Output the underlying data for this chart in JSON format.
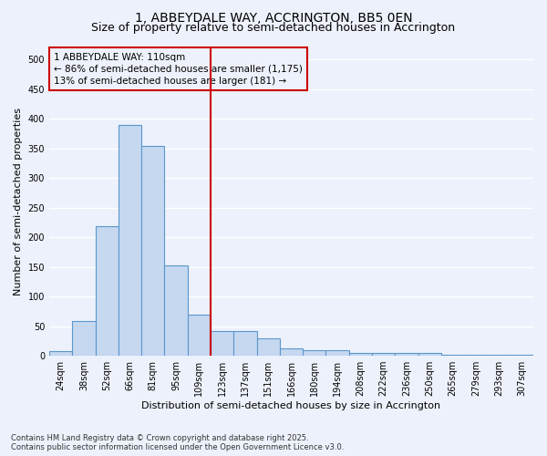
{
  "title": "1, ABBEYDALE WAY, ACCRINGTON, BB5 0EN",
  "subtitle": "Size of property relative to semi-detached houses in Accrington",
  "xlabel": "Distribution of semi-detached houses by size in Accrington",
  "ylabel": "Number of semi-detached properties",
  "footer_line1": "Contains HM Land Registry data © Crown copyright and database right 2025.",
  "footer_line2": "Contains public sector information licensed under the Open Government Licence v3.0.",
  "bin_labels": [
    "24sqm",
    "38sqm",
    "52sqm",
    "66sqm",
    "81sqm",
    "95sqm",
    "109sqm",
    "123sqm",
    "137sqm",
    "151sqm",
    "166sqm",
    "180sqm",
    "194sqm",
    "208sqm",
    "222sqm",
    "236sqm",
    "250sqm",
    "265sqm",
    "279sqm",
    "293sqm",
    "307sqm"
  ],
  "bar_values": [
    8,
    58,
    219,
    390,
    354,
    152,
    70,
    42,
    42,
    30,
    13,
    9,
    9,
    5,
    5,
    4,
    4,
    2,
    2,
    1,
    1
  ],
  "bar_color": "#c5d8f0",
  "bar_edgecolor": "#5a96cc",
  "annotation_line1": "1 ABBEYDALE WAY: 110sqm",
  "annotation_line2": "← 86% of semi-detached houses are smaller (1,175)",
  "annotation_line3": "13% of semi-detached houses are larger (181) →",
  "vline_x": 6.5,
  "vline_color": "#cc0000",
  "annotation_box_edgecolor": "#cc0000",
  "ylim": [
    0,
    520
  ],
  "yticks": [
    0,
    50,
    100,
    150,
    200,
    250,
    300,
    350,
    400,
    450,
    500
  ],
  "background_color": "#edf1fb",
  "grid_color": "#ffffff",
  "title_fontsize": 10,
  "subtitle_fontsize": 9,
  "ylabel_fontsize": 8,
  "xlabel_fontsize": 8,
  "annotation_fontsize": 7.5,
  "tick_fontsize": 7
}
